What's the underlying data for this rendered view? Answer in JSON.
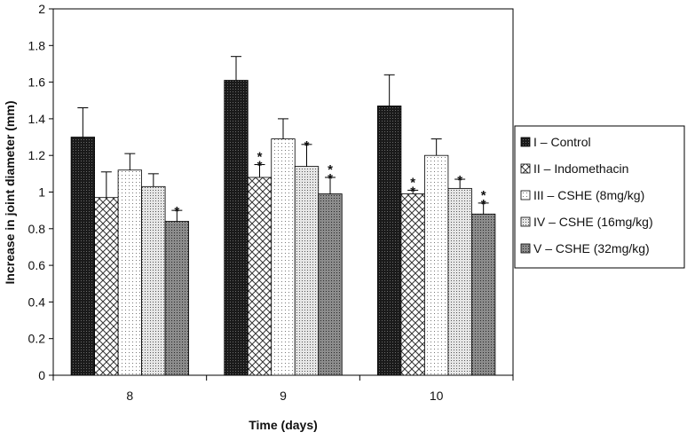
{
  "chart_data": {
    "type": "bar",
    "title": "",
    "xlabel": "Time (days)",
    "ylabel": "Increase in joint diameter (mm)",
    "ylim": [
      0,
      2
    ],
    "yticks": [
      "0",
      "0.2",
      "0.4",
      "0.6",
      "0.8",
      "1",
      "1.2",
      "1.4",
      "1.6",
      "1.8",
      "2"
    ],
    "categories": [
      "8",
      "9",
      "10"
    ],
    "series": [
      {
        "name": "I – Control",
        "pattern": "dense-dark",
        "values": [
          1.3,
          1.61,
          1.47
        ],
        "errors": [
          0.16,
          0.13,
          0.17
        ],
        "stars": [
          "",
          "",
          ""
        ]
      },
      {
        "name": "II – Indomethacin",
        "pattern": "crosshatch",
        "values": [
          0.97,
          1.08,
          0.99
        ],
        "errors": [
          0.14,
          0.07,
          0.02
        ],
        "stars": [
          "",
          "**",
          "**"
        ]
      },
      {
        "name": "III – CSHE (8mg/kg)",
        "pattern": "light-dots",
        "values": [
          1.12,
          1.29,
          1.2
        ],
        "errors": [
          0.09,
          0.11,
          0.09
        ],
        "stars": [
          "",
          "",
          ""
        ]
      },
      {
        "name": "IV – CSHE (16mg/kg)",
        "pattern": "medium-dots",
        "values": [
          1.03,
          1.14,
          1.02
        ],
        "errors": [
          0.07,
          0.12,
          0.05
        ],
        "stars": [
          "",
          "*",
          "*"
        ]
      },
      {
        "name": "V – CSHE (32mg/kg)",
        "pattern": "dark-dots",
        "values": [
          0.84,
          0.99,
          0.88
        ],
        "errors": [
          0.06,
          0.09,
          0.06
        ],
        "stars": [
          "*",
          "**",
          "**"
        ]
      }
    ],
    "legend_position": "right",
    "colors": {
      "axis": "#000000",
      "bar_stroke": "#000000",
      "background": "#ffffff"
    }
  }
}
